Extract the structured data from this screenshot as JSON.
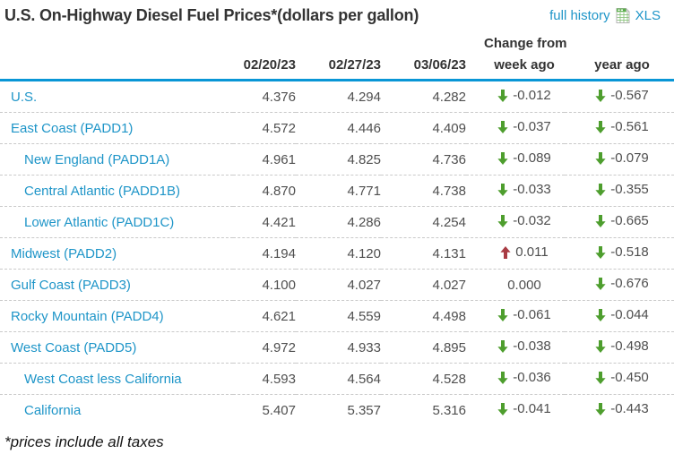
{
  "header": {
    "title": "U.S. On-Highway Diesel Fuel Prices*(dollars per gallon)",
    "full_history_label": "full history",
    "xls_label": "XLS",
    "xls_icon": "xls-spreadsheet-icon"
  },
  "table": {
    "change_from_label": "Change from",
    "columns": [
      "02/20/23",
      "02/27/23",
      "03/06/23",
      "week ago",
      "year ago"
    ],
    "rows": [
      {
        "name": "U.S.",
        "indent": false,
        "prices": [
          "4.376",
          "4.294",
          "4.282"
        ],
        "week": {
          "dir": "down",
          "value": "-0.012"
        },
        "year": {
          "dir": "down",
          "value": "-0.567"
        }
      },
      {
        "name": "East Coast (PADD1)",
        "indent": false,
        "prices": [
          "4.572",
          "4.446",
          "4.409"
        ],
        "week": {
          "dir": "down",
          "value": "-0.037"
        },
        "year": {
          "dir": "down",
          "value": "-0.561"
        }
      },
      {
        "name": "New England (PADD1A)",
        "indent": true,
        "prices": [
          "4.961",
          "4.825",
          "4.736"
        ],
        "week": {
          "dir": "down",
          "value": "-0.089"
        },
        "year": {
          "dir": "down",
          "value": "-0.079"
        }
      },
      {
        "name": "Central Atlantic (PADD1B)",
        "indent": true,
        "prices": [
          "4.870",
          "4.771",
          "4.738"
        ],
        "week": {
          "dir": "down",
          "value": "-0.033"
        },
        "year": {
          "dir": "down",
          "value": "-0.355"
        }
      },
      {
        "name": "Lower Atlantic (PADD1C)",
        "indent": true,
        "prices": [
          "4.421",
          "4.286",
          "4.254"
        ],
        "week": {
          "dir": "down",
          "value": "-0.032"
        },
        "year": {
          "dir": "down",
          "value": "-0.665"
        }
      },
      {
        "name": "Midwest (PADD2)",
        "indent": false,
        "prices": [
          "4.194",
          "4.120",
          "4.131"
        ],
        "week": {
          "dir": "up",
          "value": "0.011"
        },
        "year": {
          "dir": "down",
          "value": "-0.518"
        }
      },
      {
        "name": "Gulf Coast (PADD3)",
        "indent": false,
        "prices": [
          "4.100",
          "4.027",
          "4.027"
        ],
        "week": {
          "dir": "none",
          "value": "0.000"
        },
        "year": {
          "dir": "down",
          "value": "-0.676"
        }
      },
      {
        "name": "Rocky Mountain (PADD4)",
        "indent": false,
        "prices": [
          "4.621",
          "4.559",
          "4.498"
        ],
        "week": {
          "dir": "down",
          "value": "-0.061"
        },
        "year": {
          "dir": "down",
          "value": "-0.044"
        }
      },
      {
        "name": "West Coast (PADD5)",
        "indent": false,
        "prices": [
          "4.972",
          "4.933",
          "4.895"
        ],
        "week": {
          "dir": "down",
          "value": "-0.038"
        },
        "year": {
          "dir": "down",
          "value": "-0.498"
        }
      },
      {
        "name": "West Coast less California",
        "indent": true,
        "prices": [
          "4.593",
          "4.564",
          "4.528"
        ],
        "week": {
          "dir": "down",
          "value": "-0.036"
        },
        "year": {
          "dir": "down",
          "value": "-0.450"
        }
      },
      {
        "name": "California",
        "indent": true,
        "prices": [
          "5.407",
          "5.357",
          "5.316"
        ],
        "week": {
          "dir": "down",
          "value": "-0.041"
        },
        "year": {
          "dir": "down",
          "value": "-0.443"
        }
      }
    ]
  },
  "footer": {
    "note": "*prices include all taxes"
  },
  "colors": {
    "accent_blue_rule": "#0996d6",
    "link_blue": "#1e95c8",
    "down_green": "#4e9e2e",
    "up_red": "#a93b43",
    "value_gray": "#4f4f4f",
    "header_text": "#333333",
    "xls_icon_green": "#5aae4a"
  }
}
